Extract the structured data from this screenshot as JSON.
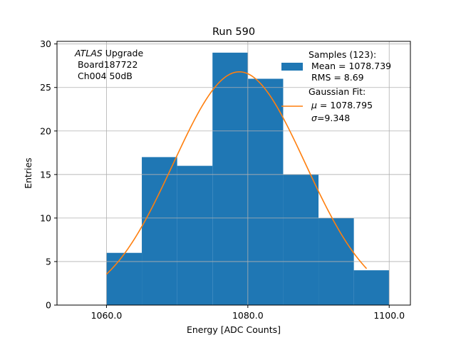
{
  "chart_data": {
    "type": "bar",
    "title": "Run 590",
    "xlabel": "Energy [ADC Counts]",
    "ylabel": "Entries",
    "xlim": [
      1053.0,
      1103.0
    ],
    "ylim": [
      0,
      30.3
    ],
    "grid": true,
    "x_ticks": [
      1060.0,
      1080.0,
      1100.0
    ],
    "x_tick_labels": [
      "1060.0",
      "1080.0",
      "1100.0"
    ],
    "y_ticks": [
      0,
      5,
      10,
      15,
      20,
      25,
      30
    ],
    "y_tick_labels": [
      "0",
      "5",
      "10",
      "15",
      "20",
      "25",
      "30"
    ],
    "histogram": {
      "name": "Samples",
      "bin_edges": [
        1060,
        1065,
        1070,
        1075,
        1080,
        1085,
        1090,
        1095,
        1100
      ],
      "counts": [
        6,
        17,
        16,
        29,
        26,
        15,
        10,
        4
      ],
      "color": "#1f77b4"
    },
    "fit": {
      "name": "Gaussian Fit",
      "type": "gaussian",
      "mu": 1078.795,
      "sigma": 9.348,
      "amplitude": 26.8,
      "x_range": [
        1060.0,
        1096.8
      ],
      "color": "#ff7f0e"
    },
    "annotation": {
      "italic": "ATLAS",
      "rest": " Upgrade",
      "line2": " Board187722",
      "line3": " Ch004 50dB"
    },
    "legend": {
      "position": "top-right",
      "samples_title": "Samples (123):",
      "samples_mean": " Mean = 1078.739",
      "samples_rms": " RMS = 8.69",
      "fit_title": "Gaussian Fit:",
      "fit_mu_symbol": "μ",
      "fit_mu_value": " = 1078.795",
      "fit_sigma_symbol": "σ",
      "fit_sigma_value": "=9.348"
    }
  }
}
